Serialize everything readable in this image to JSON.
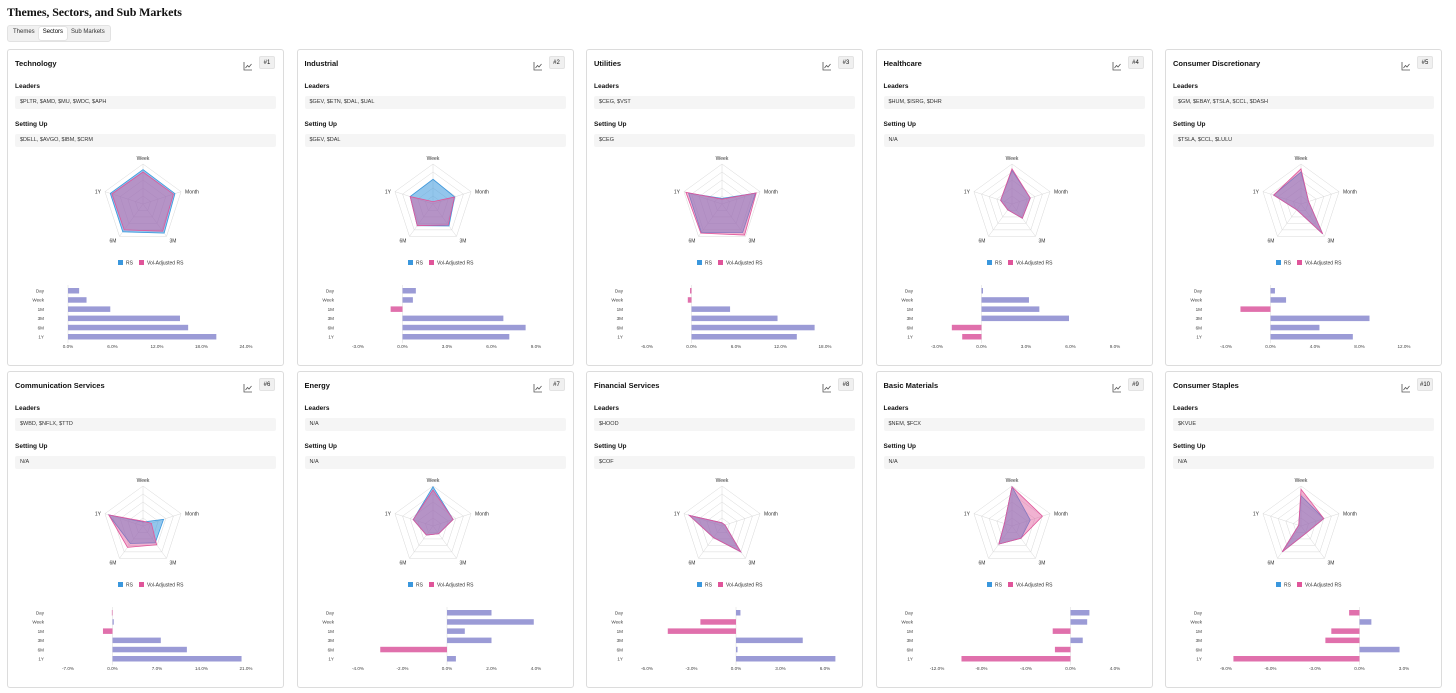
{
  "page_title": "Themes, Sectors, and Sub Markets",
  "tabs": [
    {
      "label": "Themes",
      "active": false
    },
    {
      "label": "Sectors",
      "active": true
    },
    {
      "label": "Sub Markets",
      "active": false
    }
  ],
  "labels": {
    "leaders": "Leaders",
    "setting_up": "Setting Up"
  },
  "legend": {
    "rs": "RS",
    "vol_adjusted": "Vol-Adjusted RS"
  },
  "colors": {
    "rs": "#3a97dd",
    "vol": "#e0559a",
    "bar_pos": "#9b9bd6",
    "bar_neg": "#e070ac",
    "overlap": "#8e73b7"
  },
  "radar_axes": [
    "Week",
    "Month",
    "3M",
    "6M",
    "1Y"
  ],
  "bar_categories": [
    "Day",
    "Week",
    "1M",
    "3M",
    "6M",
    "1Y"
  ],
  "sectors": [
    {
      "name": "Technology",
      "rank": "#1",
      "leaders": "$PLTR, $AMD, $MU, $WDC, $APH",
      "setting_up": "$DELL, $AVGO, $IBM, $CRM",
      "chart_data": {
        "type": "radar+bar",
        "radar": {
          "rs": [
            0.86,
            0.84,
            0.9,
            0.86,
            0.86
          ],
          "vol": [
            0.8,
            0.8,
            0.84,
            0.8,
            0.82
          ]
        },
        "bar": {
          "values": [
            1.5,
            2.5,
            5.7,
            15.1,
            16.2,
            20.0
          ],
          "ticks": [
            "0.0%",
            "6.0%",
            "12.0%",
            "18.0%",
            "24.0%"
          ],
          "min": 0,
          "max": 24
        }
      }
    },
    {
      "name": "Industrial",
      "rank": "#2",
      "leaders": "$GEV, $ETN, $DAL, $UAL",
      "setting_up": "$GEV, $DAL",
      "chart_data": {
        "type": "radar+bar",
        "radar": {
          "rs": [
            0.62,
            0.57,
            0.68,
            0.67,
            0.6
          ],
          "vol": [
            0.06,
            0.56,
            0.65,
            0.67,
            0.6
          ]
        },
        "bar": {
          "values": [
            0.9,
            0.7,
            -0.8,
            6.8,
            8.3,
            7.2
          ],
          "ticks": [
            "-3.0%",
            "0.0%",
            "3.0%",
            "6.0%",
            "9.0%"
          ],
          "min": -3,
          "max": 9
        }
      }
    },
    {
      "name": "Utilities",
      "rank": "#3",
      "leaders": "$CEG, $VST",
      "setting_up": "$CEG",
      "chart_data": {
        "type": "radar+bar",
        "radar": {
          "rs": [
            0.14,
            0.88,
            0.88,
            0.88,
            0.88
          ],
          "vol": [
            0.12,
            0.9,
            0.96,
            0.9,
            0.95
          ]
        },
        "bar": {
          "values": [
            -0.2,
            -0.5,
            5.2,
            11.6,
            16.6,
            14.2
          ],
          "ticks": [
            "-6.0%",
            "0.0%",
            "6.0%",
            "12.0%",
            "18.0%"
          ],
          "min": -6,
          "max": 18
        }
      }
    },
    {
      "name": "Healthcare",
      "rank": "#4",
      "leaders": "$HUM, $ISRG, $DHR",
      "setting_up": "N/A",
      "chart_data": {
        "type": "radar+bar",
        "radar": {
          "rs": [
            0.84,
            0.48,
            0.44,
            0.18,
            0.3
          ],
          "vol": [
            0.88,
            0.48,
            0.44,
            0.18,
            0.3
          ]
        },
        "bar": {
          "values": [
            0.1,
            3.2,
            3.9,
            5.9,
            -2.0,
            -1.3
          ],
          "ticks": [
            "-3.0%",
            "0.0%",
            "3.0%",
            "6.0%",
            "9.0%"
          ],
          "min": -3,
          "max": 9
        }
      }
    },
    {
      "name": "Consumer Discretionary",
      "rank": "#5",
      "leaders": "$GM, $EBAY, $TSLA, $CCL, $DASH",
      "setting_up": "$TSLA, $CCL, $LULU",
      "chart_data": {
        "type": "radar+bar",
        "radar": {
          "rs": [
            0.8,
            0.2,
            0.92,
            0.18,
            0.72
          ],
          "vol": [
            0.88,
            0.2,
            0.92,
            0.18,
            0.72
          ]
        },
        "bar": {
          "values": [
            0.4,
            1.4,
            -2.7,
            8.9,
            4.4,
            7.4
          ],
          "ticks": [
            "-4.0%",
            "0.0%",
            "4.0%",
            "8.0%",
            "12.0%"
          ],
          "min": -4,
          "max": 12
        }
      }
    },
    {
      "name": "Communication Services",
      "rank": "#6",
      "leaders": "$WBD, $NFLX, $TTD",
      "setting_up": "N/A",
      "chart_data": {
        "type": "radar+bar",
        "radar": {
          "rs": [
            0.1,
            0.54,
            0.52,
            0.54,
            0.9
          ],
          "vol": [
            0.12,
            0.22,
            0.58,
            0.66,
            0.9
          ]
        },
        "bar": {
          "values": [
            -0.1,
            0.2,
            -1.5,
            7.6,
            11.7,
            20.3
          ],
          "ticks": [
            "-7.0%",
            "0.0%",
            "7.0%",
            "14.0%",
            "21.0%"
          ],
          "min": -7,
          "max": 21
        }
      }
    },
    {
      "name": "Energy",
      "rank": "#7",
      "leaders": "N/A",
      "setting_up": "N/A",
      "chart_data": {
        "type": "radar+bar",
        "radar": {
          "rs": [
            0.98,
            0.53,
            0.24,
            0.28,
            0.52
          ],
          "vol": [
            0.9,
            0.53,
            0.24,
            0.28,
            0.52
          ]
        },
        "bar": {
          "values": [
            2.0,
            3.9,
            0.8,
            2.0,
            -3.0,
            0.4
          ],
          "ticks": [
            "-4.0%",
            "-2.0%",
            "0.0%",
            "2.0%",
            "4.0%"
          ],
          "min": -4,
          "max": 4
        }
      }
    },
    {
      "name": "Financial Services",
      "rank": "#8",
      "leaders": "$HOOD",
      "setting_up": "$COF",
      "chart_data": {
        "type": "radar+bar",
        "radar": {
          "rs": [
            0.08,
            0.08,
            0.8,
            0.36,
            0.86
          ],
          "vol": [
            0.08,
            0.08,
            0.8,
            0.36,
            0.86
          ]
        },
        "bar": {
          "values": [
            0.3,
            -2.4,
            -4.6,
            4.5,
            0.1,
            6.7
          ],
          "ticks": [
            "-6.0%",
            "-3.0%",
            "0.0%",
            "3.0%",
            "6.0%"
          ],
          "min": -6,
          "max": 6
        }
      }
    },
    {
      "name": "Basic Materials",
      "rank": "#9",
      "leaders": "$NEM, $FCX",
      "setting_up": "N/A",
      "chart_data": {
        "type": "radar+bar",
        "radar": {
          "rs": [
            0.98,
            0.48,
            0.38,
            0.56,
            0.2
          ],
          "vol": [
            0.98,
            0.8,
            0.38,
            0.56,
            0.2
          ]
        },
        "bar": {
          "values": [
            1.7,
            1.5,
            -1.6,
            1.1,
            -1.4,
            -9.8
          ],
          "ticks": [
            "-12.0%",
            "-8.0%",
            "-4.0%",
            "0.0%",
            "4.0%"
          ],
          "min": -12,
          "max": 4
        }
      }
    },
    {
      "name": "Consumer Staples",
      "rank": "#10",
      "leaders": "$KVUE",
      "setting_up": "N/A",
      "chart_data": {
        "type": "radar+bar",
        "radar": {
          "rs": [
            0.76,
            0.6,
            0.22,
            0.8,
            0.06
          ],
          "vol": [
            0.92,
            0.6,
            0.22,
            0.8,
            0.06
          ]
        },
        "bar": {
          "values": [
            -0.7,
            0.8,
            -1.9,
            -2.3,
            2.7,
            -8.5
          ],
          "ticks": [
            "-9.0%",
            "-6.0%",
            "-3.0%",
            "0.0%",
            "3.0%"
          ],
          "min": -9,
          "max": 3
        }
      }
    }
  ]
}
